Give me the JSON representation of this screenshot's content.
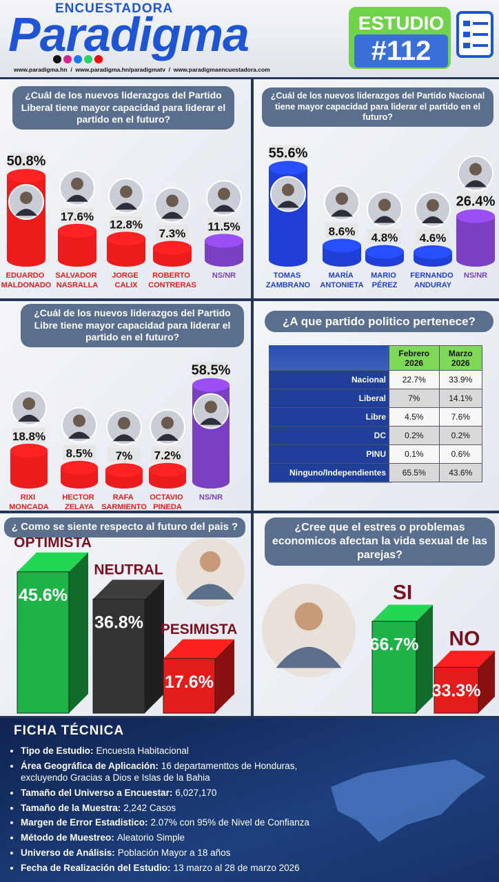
{
  "header": {
    "brand_top": "ENCUESTADORA",
    "brand": "Paradigma",
    "study_label": "ESTUDIO",
    "study_number": "#112",
    "links": "www.paradigma.hn  /  www.paradigma.hn/paradigmatv  /  www.paradigmaencuestadora.com"
  },
  "chart_data": [
    {
      "type": "cylinder",
      "title": "¿Cuál de los nuevos liderazgos del Partido Liberal tiene mayor capacidad para liderar el partido en el futuro?",
      "categories": [
        "EDUARDO MALDONADO",
        "SALVADOR NASRALLA",
        "JORGE CALIX",
        "ROBERTO CONTRERAS",
        "NS/NR"
      ],
      "values": [
        50.8,
        17.6,
        12.8,
        7.3,
        11.5
      ],
      "value_labels": [
        "50.8%",
        "17.6%",
        "12.8%",
        "7.3%",
        "11.5%"
      ],
      "colors": [
        "#ec1c1c",
        "#ec1c1c",
        "#ec1c1c",
        "#ec1c1c",
        "#7b3fc4"
      ]
    },
    {
      "type": "cylinder",
      "title": "¿Cuál de los nuevos liderazgos del Partido Nacional tiene mayor capacidad para liderar el partido en el futuro?",
      "categories": [
        "TOMAS ZAMBRANO",
        "MARÍA ANTONIETA",
        "MARIO PÉREZ",
        "FERNANDO ANDURAY",
        "NS/NR"
      ],
      "values": [
        55.6,
        8.6,
        4.8,
        4.6,
        26.4
      ],
      "value_labels": [
        "55.6%",
        "8.6%",
        "4.8%",
        "4.6%",
        "26.4%"
      ],
      "colors": [
        "#1f3fd6",
        "#1f3fd6",
        "#1f3fd6",
        "#1f3fd6",
        "#7b3fc4"
      ]
    },
    {
      "type": "cylinder",
      "title": "¿Cuál de los nuevos liderazgos del Partido Libre tiene mayor capacidad para liderar el partido en el futuro?",
      "categories": [
        "RIXI MONCADA",
        "HECTOR ZELAYA",
        "RAFA SARMIENTO",
        "OCTAVIO PINEDA",
        "NS/NR"
      ],
      "values": [
        18.8,
        8.5,
        7,
        7.2,
        58.5
      ],
      "value_labels": [
        "18.8%",
        "8.5%",
        "7%",
        "7.2%",
        "58.5%"
      ],
      "colors": [
        "#ec1c1c",
        "#ec1c1c",
        "#ec1c1c",
        "#ec1c1c",
        "#7b3fc4"
      ]
    },
    {
      "type": "bar",
      "title": "¿ Como se siente respecto al futuro del pais ?",
      "categories": [
        "OPTIMISTA",
        "NEUTRAL",
        "PESIMISTA"
      ],
      "values": [
        45.6,
        36.8,
        17.6
      ],
      "value_labels": [
        "45.6%",
        "36.8%",
        "17.6%"
      ],
      "colors": [
        "#1db347",
        "#333333",
        "#e21b1b"
      ]
    },
    {
      "type": "bar",
      "title": "¿Cree que el estres o problemas economicos  afectan la vida sexual de las parejas?",
      "categories": [
        "SI",
        "NO"
      ],
      "values": [
        66.7,
        33.3
      ],
      "value_labels": [
        "66.7%",
        "33.3%"
      ],
      "colors": [
        "#1db347",
        "#e21b1b"
      ]
    }
  ],
  "table": {
    "title": "¿A que partido politico pertenece?",
    "columns": [
      "Febrero 2026",
      "Marzo 2026"
    ],
    "rows": [
      [
        "Nacional",
        "22.7%",
        "33.9%"
      ],
      [
        "Liberal",
        "7%",
        "14.1%"
      ],
      [
        "Libre",
        "4.5%",
        "7.6%"
      ],
      [
        "DC",
        "0.2%",
        "0.2%"
      ],
      [
        "PINU",
        "0.1%",
        "0.6%"
      ],
      [
        "Ninguno/Independientes",
        "65.5%",
        "43.6%"
      ]
    ]
  },
  "ficha": {
    "title": "FICHA TÉCNICA",
    "items": [
      {
        "label": "Tipo de Estudio:",
        "text": "Encuesta Habitacional"
      },
      {
        "label": "Área Geográfica de Aplicación:",
        "text": "16 departamenttos de Honduras, excluyendo Gracias a Dios e Islas de la Bahia"
      },
      {
        "label": "Tamaño del Universo a Encuestar:",
        "text": "6,027,170"
      },
      {
        "label": "Tamaño de la Muestra:",
        "text": "2,242 Casos"
      },
      {
        "label": "Margen de Error Estadistico:",
        "text": "2.07% con 95% de Nivel de Confianza"
      },
      {
        "label": "Método de Muestreo:",
        "text": "Aleatorio Simple"
      },
      {
        "label": "Universo de Análisis:",
        "text": "Población Mayor a 18 años"
      },
      {
        "label": "Fecha de Realización del Estudio:",
        "text": "13 marzo al 28 de marzo 2026"
      }
    ]
  }
}
